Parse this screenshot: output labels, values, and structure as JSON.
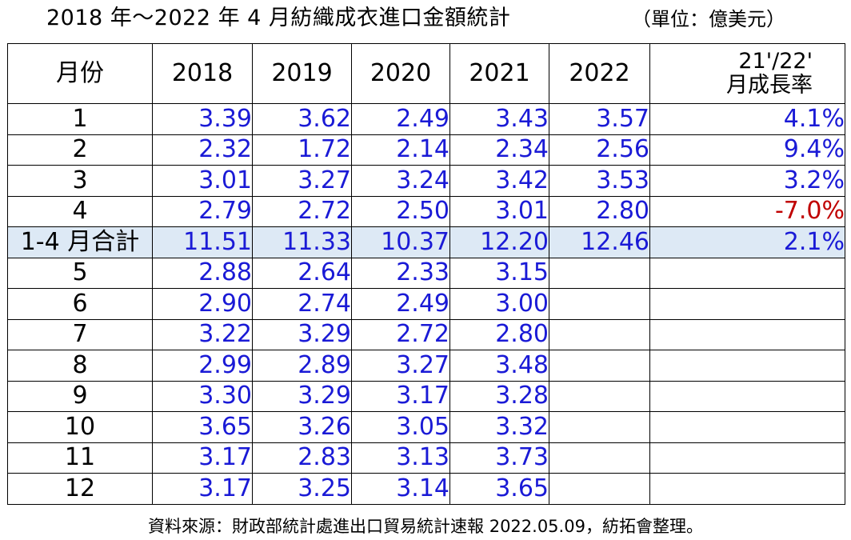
{
  "title": "2018 年～2022 年 4 月紡織成衣進口金額統計",
  "unit": "（單位：億美元）",
  "headers": {
    "month": "月份",
    "years": [
      "2018",
      "2019",
      "2020",
      "2021",
      "2022"
    ],
    "growth_line1": "21'/22'",
    "growth_line2": "月成長率"
  },
  "rows": [
    {
      "month": "1",
      "values": [
        "3.39",
        "3.62",
        "2.49",
        "3.43",
        "3.57"
      ],
      "growth": "4.1%"
    },
    {
      "month": "2",
      "values": [
        "2.32",
        "1.72",
        "2.14",
        "2.34",
        "2.56"
      ],
      "growth": "9.4%"
    },
    {
      "month": "3",
      "values": [
        "3.01",
        "3.27",
        "3.24",
        "3.42",
        "3.53"
      ],
      "growth": "3.2%"
    },
    {
      "month": "4",
      "values": [
        "2.79",
        "2.72",
        "2.50",
        "3.01",
        "2.80"
      ],
      "growth": "-7.0%"
    },
    {
      "month": "1-4 月合計",
      "values": [
        "11.51",
        "11.33",
        "10.37",
        "12.20",
        "12.46"
      ],
      "growth": "2.1%"
    },
    {
      "month": "5",
      "values": [
        "2.88",
        "2.64",
        "2.33",
        "3.15",
        ""
      ],
      "growth": ""
    },
    {
      "month": "6",
      "values": [
        "2.90",
        "2.74",
        "2.49",
        "3.00",
        ""
      ],
      "growth": ""
    },
    {
      "month": "7",
      "values": [
        "3.22",
        "3.29",
        "2.72",
        "2.80",
        ""
      ],
      "growth": ""
    },
    {
      "month": "8",
      "values": [
        "2.99",
        "2.89",
        "3.27",
        "3.48",
        ""
      ],
      "growth": ""
    },
    {
      "month": "9",
      "values": [
        "3.30",
        "3.29",
        "3.17",
        "3.28",
        ""
      ],
      "growth": ""
    },
    {
      "month": "10",
      "values": [
        "3.65",
        "3.26",
        "3.05",
        "3.32",
        ""
      ],
      "growth": ""
    },
    {
      "month": "11",
      "values": [
        "3.17",
        "2.83",
        "3.13",
        "3.73",
        ""
      ],
      "growth": ""
    },
    {
      "month": "12",
      "values": [
        "3.17",
        "3.25",
        "3.14",
        "3.65",
        ""
      ],
      "growth": ""
    }
  ],
  "source": "資料來源：財政部統計處進出口貿易統計速報 2022.05.09，紡拓會整理。",
  "colors": {
    "value_text": "#1a1ad6",
    "negative_text": "#c00000",
    "subtotal_row_bg": "#dde9f5",
    "border": "#000000"
  }
}
